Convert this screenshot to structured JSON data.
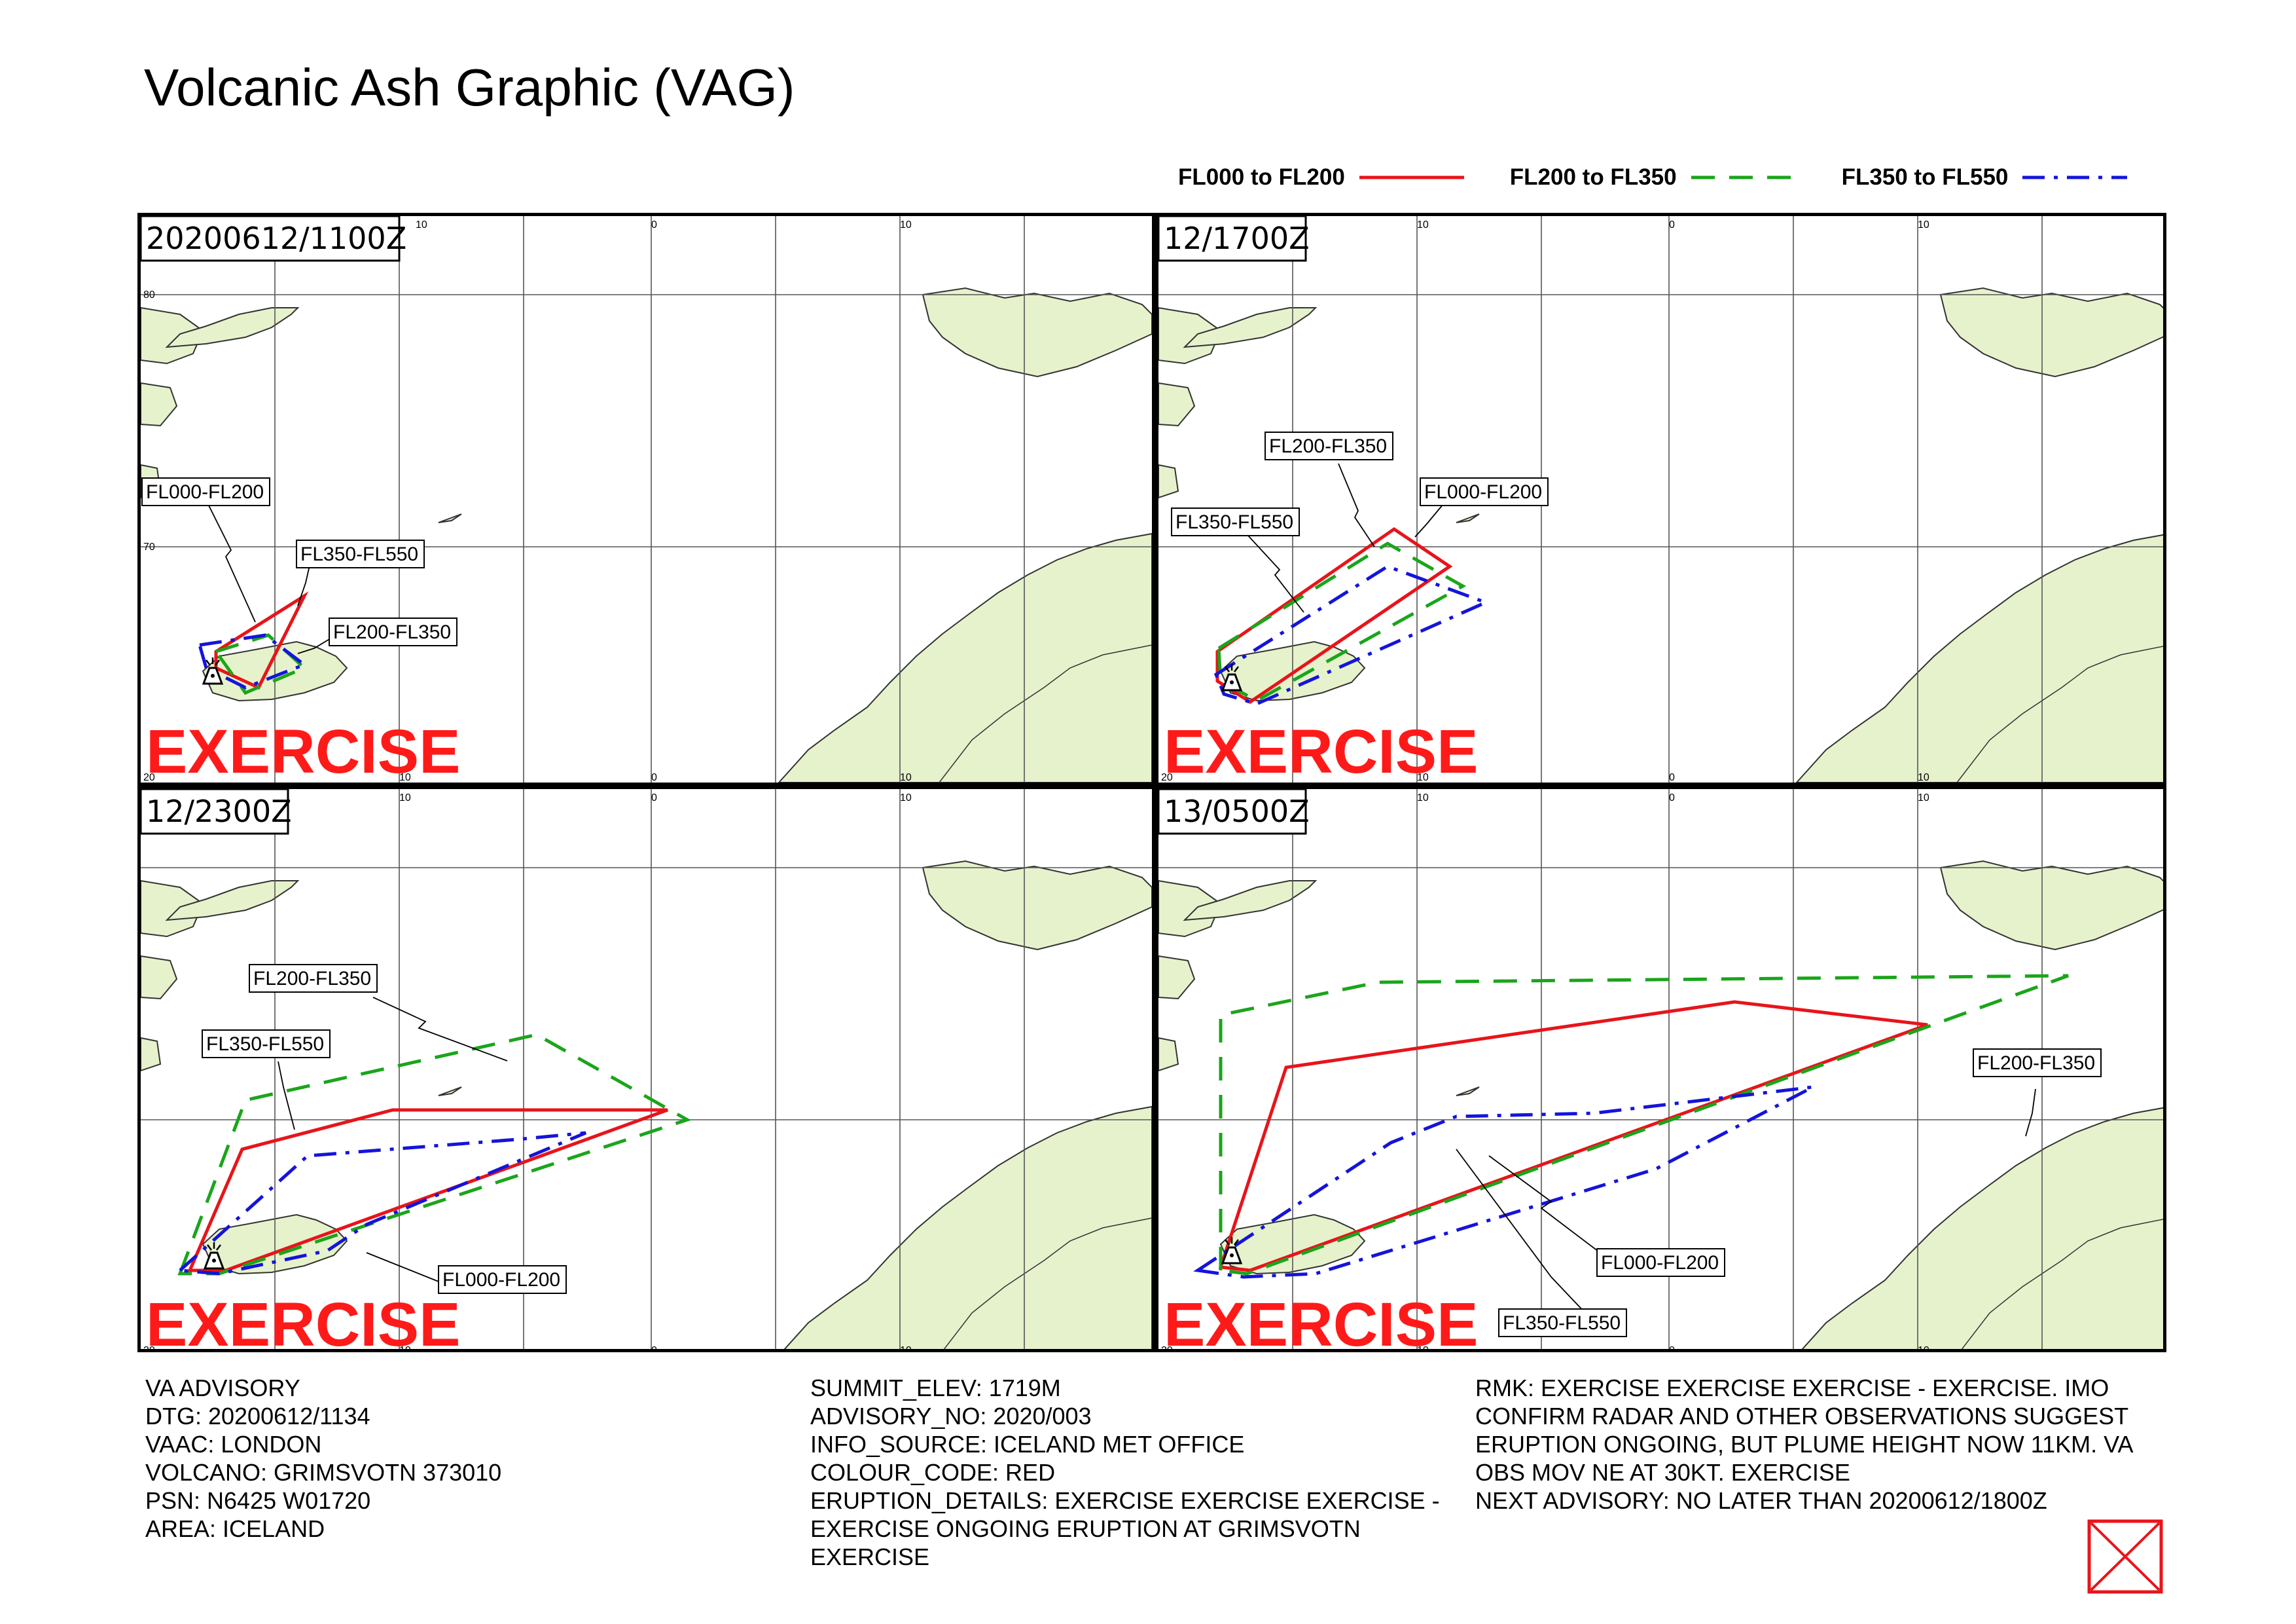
{
  "title": "Volcanic Ash Graphic (VAG)",
  "legend": [
    {
      "label": "FL000 to FL200",
      "color": "#e8141a",
      "style": "solid"
    },
    {
      "label": "FL200 to FL350",
      "color": "#1aa51a",
      "style": "dashed"
    },
    {
      "label": "FL350 to FL550",
      "color": "#1414dc",
      "style": "dash-dot"
    }
  ],
  "panels": [
    {
      "time_label": "20200612/1100Z",
      "labels": [
        "FL000-FL200",
        "FL350-FL550",
        "FL200-FL350"
      ],
      "exercise": "EXERCISE"
    },
    {
      "time_label": "12/1700Z",
      "labels": [
        "FL200-FL350",
        "FL000-FL200",
        "FL350-FL550"
      ],
      "exercise": "EXERCISE"
    },
    {
      "time_label": "12/2300Z",
      "labels": [
        "FL200-FL350",
        "FL350-FL550",
        "FL000-FL200"
      ],
      "exercise": "EXERCISE"
    },
    {
      "time_label": "13/0500Z",
      "labels": [
        "FL200-FL350",
        "FL000-FL200",
        "FL350-FL550"
      ],
      "exercise": "EXERCISE"
    }
  ],
  "grid_labels": {
    "top": [
      "10",
      "0",
      "10"
    ],
    "bottom": [
      "20",
      "10",
      "0",
      "10"
    ],
    "left": [
      "80",
      "70"
    ]
  },
  "advisory": {
    "col1": [
      "VA ADVISORY",
      "DTG: 20200612/1134",
      "VAAC: LONDON",
      "VOLCANO: GRIMSVOTN 373010",
      "PSN: N6425 W01720",
      "AREA: ICELAND"
    ],
    "col2": [
      "SUMMIT_ELEV: 1719M",
      "ADVISORY_NO: 2020/003",
      "INFO_SOURCE: ICELAND MET OFFICE",
      "COLOUR_CODE: RED"
    ],
    "col2_details": "ERUPTION_DETAILS: EXERCISE EXERCISE EXERCISE - EXERCISE ONGOING ERUPTION AT GRIMSVOTN EXERCISE",
    "col3_remarks": "RMK: EXERCISE EXERCISE EXERCISE - EXERCISE. IMO CONFIRM RADAR AND OTHER OBSERVATIONS SUGGEST ERUPTION ONGOING, BUT PLUME HEIGHT NOW 11KM. VA OBS MOV NE AT 30KT. EXERCISE",
    "col3_next": "NEXT ADVISORY: NO LATER THAN 20200612/1800Z"
  },
  "colors": {
    "land": "#e6f2cc",
    "coast": "#333333",
    "grid": "#555555",
    "exercise": "#ff1a1a",
    "stamp": "#e8141a"
  }
}
